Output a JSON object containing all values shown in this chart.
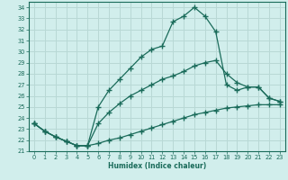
{
  "xlabel": "Humidex (Indice chaleur)",
  "xlim": [
    -0.5,
    23.5
  ],
  "ylim": [
    21,
    34.5
  ],
  "yticks": [
    21,
    22,
    23,
    24,
    25,
    26,
    27,
    28,
    29,
    30,
    31,
    32,
    33,
    34
  ],
  "xticks": [
    0,
    1,
    2,
    3,
    4,
    5,
    6,
    7,
    8,
    9,
    10,
    11,
    12,
    13,
    14,
    15,
    16,
    17,
    18,
    19,
    20,
    21,
    22,
    23
  ],
  "bg_color": "#d1eeec",
  "grid_color": "#b8d8d5",
  "line_color": "#1a6b5a",
  "series1_x": [
    0,
    1,
    2,
    3,
    4,
    5,
    6,
    7,
    8,
    9,
    10,
    11,
    12,
    13,
    14,
    15,
    16,
    17,
    18,
    19,
    20,
    21,
    22,
    23
  ],
  "series1_y": [
    23.5,
    22.8,
    22.3,
    21.9,
    21.5,
    21.5,
    21.7,
    22.0,
    22.2,
    22.5,
    22.8,
    23.1,
    23.4,
    23.7,
    24.0,
    24.3,
    24.5,
    24.7,
    24.9,
    25.0,
    25.1,
    25.2,
    25.2,
    25.2
  ],
  "series2_x": [
    0,
    1,
    2,
    3,
    4,
    5,
    6,
    7,
    8,
    9,
    10,
    11,
    12,
    13,
    14,
    15,
    16,
    17,
    18,
    19,
    20,
    21,
    22,
    23
  ],
  "series2_y": [
    23.5,
    22.8,
    22.3,
    21.9,
    21.5,
    21.5,
    23.5,
    24.5,
    25.3,
    26.0,
    26.5,
    27.0,
    27.5,
    27.8,
    28.2,
    28.7,
    29.0,
    29.2,
    28.0,
    27.2,
    26.8,
    26.8,
    25.8,
    25.5
  ],
  "series3_x": [
    0,
    1,
    2,
    3,
    4,
    5,
    6,
    7,
    8,
    9,
    10,
    11,
    12,
    13,
    14,
    15,
    16,
    17,
    18,
    19,
    20,
    21,
    22,
    23
  ],
  "series3_y": [
    23.5,
    22.8,
    22.3,
    21.9,
    21.5,
    21.5,
    25.0,
    26.5,
    27.5,
    28.5,
    29.5,
    30.2,
    30.5,
    32.7,
    33.2,
    34.0,
    33.2,
    31.8,
    27.0,
    26.5,
    26.8,
    26.8,
    25.8,
    25.5
  ]
}
